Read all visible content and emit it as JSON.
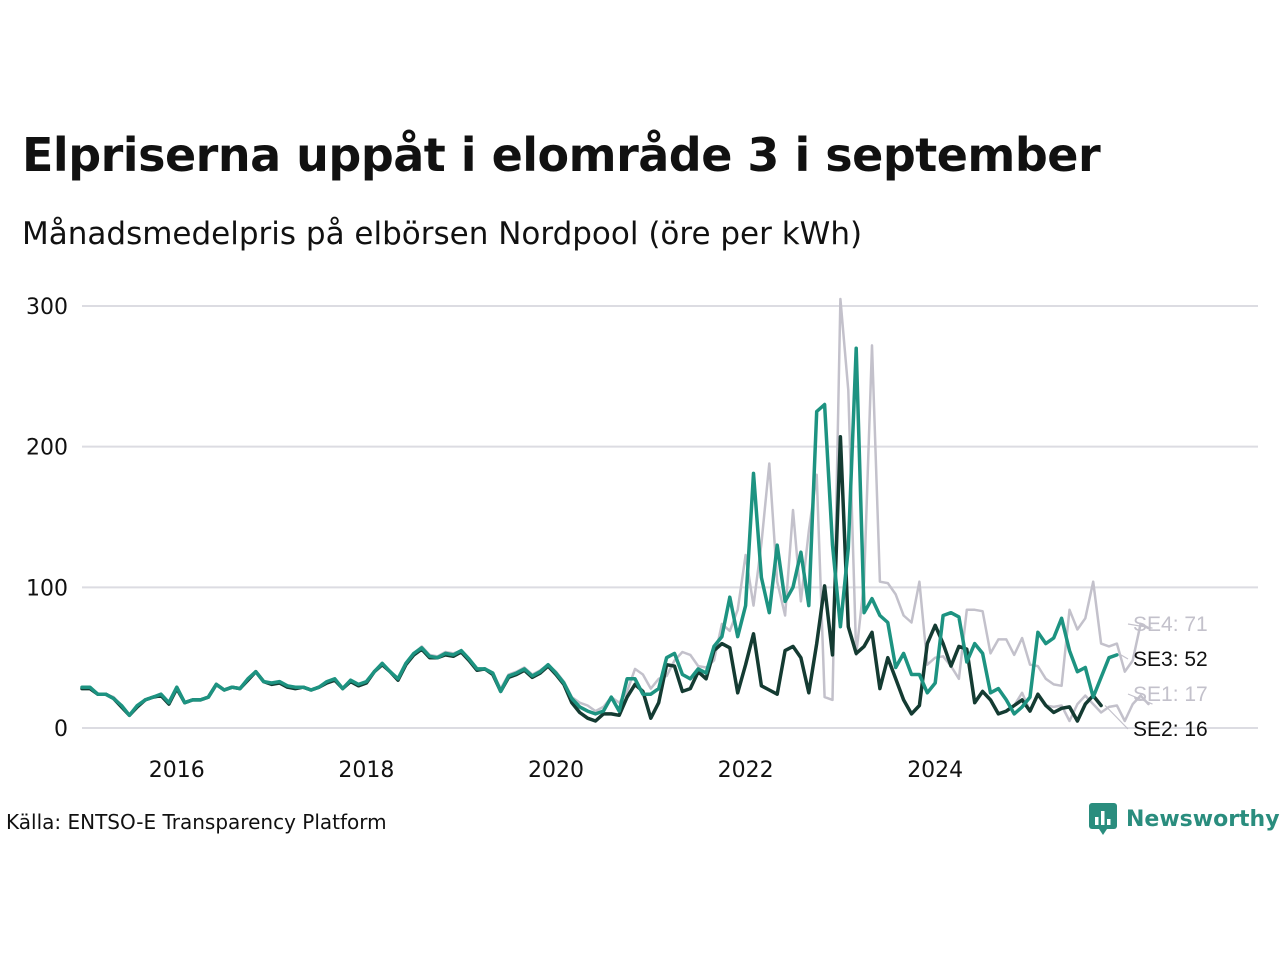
{
  "title": "Elpriserna uppåt i elområde 3 i september",
  "subtitle": "Månadsmedelpris på elbörsen Nordpool (öre per kWh)",
  "source": "Källa: ENTSO-E Transparency Platform",
  "brand": {
    "name": "Newsworthy",
    "icon": "newsworthy-logo-icon",
    "color": "#2a8d7e"
  },
  "chart_data": {
    "type": "line",
    "title": "Elpriserna uppåt i elområde 3 i september",
    "ylabel": "öre per kWh",
    "xlabel": "",
    "ylim": [
      0,
      300
    ],
    "yticks": [
      0,
      100,
      200,
      300
    ],
    "xticks": [
      {
        "label": "2016",
        "year": 2016
      },
      {
        "label": "2018",
        "year": 2018
      },
      {
        "label": "2020",
        "year": 2020
      },
      {
        "label": "2022",
        "year": 2022
      },
      {
        "label": "2024",
        "year": 2024
      }
    ],
    "grid": true,
    "x_start": "2015-01",
    "series": [
      {
        "name": "SE4",
        "label": "SE4: 71",
        "color": "#c3c1cb",
        "width": 2.5,
        "values": [
          29,
          29,
          24,
          24,
          22,
          16,
          9,
          16,
          20,
          22,
          24,
          18,
          29,
          18,
          20,
          20,
          22,
          31,
          27,
          29,
          28,
          35,
          40,
          33,
          32,
          33,
          30,
          29,
          29,
          27,
          29,
          33,
          35,
          28,
          34,
          31,
          33,
          40,
          46,
          40,
          35,
          46,
          53,
          58,
          52,
          51,
          54,
          53,
          55,
          49,
          42,
          42,
          39,
          28,
          38,
          40,
          43,
          38,
          41,
          45,
          40,
          33,
          22,
          18,
          16,
          12,
          15,
          22,
          18,
          26,
          42,
          38,
          28,
          35,
          37,
          48,
          54,
          52,
          44,
          43,
          48,
          74,
          69,
          84,
          123,
          87,
          131,
          188,
          104,
          80,
          155,
          90,
          140,
          180,
          22,
          20,
          305,
          240,
          52,
          104,
          272,
          104,
          103,
          95,
          80,
          75,
          104,
          45,
          50,
          51,
          44,
          35,
          84,
          84,
          83,
          53,
          63,
          63,
          52,
          64,
          45,
          44,
          35,
          31,
          30,
          84,
          70,
          78,
          104,
          60,
          58,
          60,
          40,
          48,
          74,
          71
        ]
      },
      {
        "name": "SE1",
        "label": "SE1: 17",
        "color": "#c3c1cb",
        "width": 2.5,
        "values": [
          29,
          29,
          24,
          24,
          21,
          15,
          9,
          15,
          20,
          22,
          23,
          17,
          28,
          18,
          20,
          20,
          22,
          31,
          27,
          29,
          28,
          34,
          40,
          33,
          31,
          32,
          29,
          28,
          29,
          27,
          29,
          32,
          34,
          28,
          33,
          30,
          32,
          40,
          45,
          40,
          34,
          45,
          52,
          56,
          50,
          50,
          52,
          51,
          54,
          48,
          41,
          42,
          38,
          26,
          36,
          38,
          41,
          36,
          39,
          44,
          38,
          31,
          18,
          11,
          7,
          5,
          10,
          10,
          9,
          22,
          31,
          26,
          7,
          18,
          45,
          44,
          26,
          28,
          40,
          35,
          55,
          60,
          57,
          25,
          45,
          67,
          30,
          27,
          24,
          55,
          58,
          50,
          25,
          60,
          101,
          52,
          207,
          72,
          53,
          58,
          68,
          28,
          50,
          35,
          20,
          10,
          16,
          60,
          73,
          60,
          44,
          58,
          56,
          18,
          26,
          20,
          10,
          12,
          16,
          25,
          12,
          24,
          16,
          15,
          16,
          5,
          17,
          23,
          17,
          11,
          15,
          16,
          5,
          17,
          23,
          17
        ]
      },
      {
        "name": "SE2",
        "label": "SE2: 16",
        "color": "#143b32",
        "width": 3.5,
        "values": [
          28,
          28,
          24,
          24,
          21,
          15,
          9,
          15,
          20,
          22,
          23,
          17,
          28,
          18,
          20,
          20,
          22,
          31,
          27,
          29,
          28,
          34,
          40,
          33,
          31,
          32,
          29,
          28,
          29,
          27,
          29,
          32,
          34,
          28,
          33,
          30,
          32,
          40,
          45,
          40,
          34,
          45,
          52,
          56,
          50,
          50,
          52,
          51,
          54,
          48,
          41,
          42,
          38,
          26,
          36,
          38,
          41,
          36,
          39,
          44,
          38,
          31,
          18,
          11,
          7,
          5,
          10,
          10,
          9,
          22,
          31,
          26,
          7,
          18,
          45,
          44,
          26,
          28,
          40,
          35,
          55,
          60,
          57,
          25,
          45,
          67,
          30,
          27,
          24,
          55,
          58,
          50,
          25,
          60,
          101,
          52,
          207,
          72,
          53,
          58,
          68,
          28,
          50,
          35,
          20,
          10,
          16,
          60,
          73,
          60,
          44,
          58,
          56,
          18,
          26,
          20,
          10,
          12,
          16,
          20,
          12,
          24,
          16,
          11,
          14,
          15,
          5,
          17,
          23,
          16
        ]
      },
      {
        "name": "SE3",
        "label": "SE3: 52",
        "color": "#1d9381",
        "width": 3.5,
        "values": [
          29,
          29,
          24,
          24,
          21,
          16,
          9,
          16,
          20,
          22,
          24,
          18,
          29,
          18,
          20,
          20,
          22,
          31,
          27,
          29,
          28,
          35,
          40,
          33,
          32,
          33,
          30,
          29,
          29,
          27,
          29,
          33,
          35,
          28,
          34,
          31,
          33,
          40,
          46,
          40,
          35,
          46,
          53,
          57,
          51,
          50,
          53,
          52,
          55,
          49,
          42,
          42,
          39,
          26,
          37,
          39,
          42,
          37,
          40,
          45,
          39,
          32,
          21,
          15,
          12,
          10,
          12,
          22,
          12,
          35,
          35,
          24,
          24,
          28,
          50,
          53,
          38,
          35,
          42,
          39,
          58,
          65,
          93,
          65,
          87,
          181,
          107,
          82,
          130,
          90,
          100,
          125,
          87,
          225,
          230,
          130,
          72,
          128,
          270,
          82,
          92,
          80,
          75,
          43,
          53,
          38,
          38,
          25,
          32,
          80,
          82,
          79,
          47,
          60,
          53,
          25,
          28,
          20,
          10,
          15,
          22,
          68,
          60,
          64,
          78,
          55,
          40,
          43,
          22,
          36,
          50,
          52
        ]
      }
    ]
  }
}
